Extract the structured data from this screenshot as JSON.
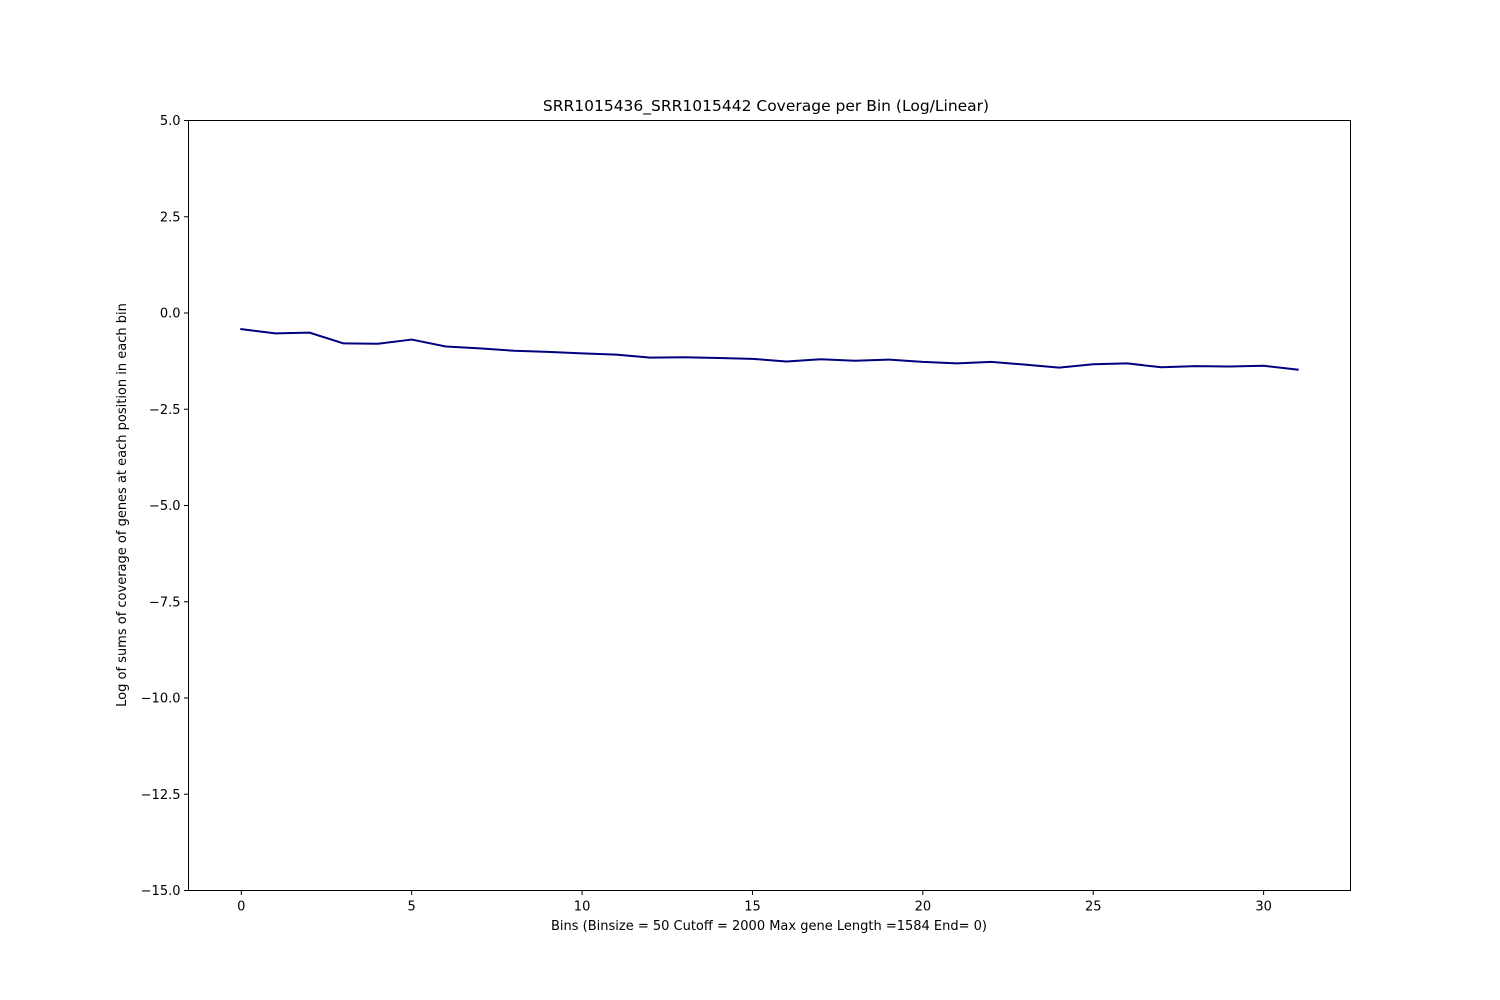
{
  "chart_data": {
    "type": "line",
    "title": "SRR1015436_SRR1015442 Coverage per Bin (Log/Linear)",
    "xlabel": "Bins  (Binsize = 50 Cutoff = 2000 Max gene Length =1584 End= 0)",
    "ylabel": "Log of sums of coverage of genes at each position in each bin",
    "xlim": [
      -1.55,
      32.55
    ],
    "ylim": [
      -15.0,
      5.0
    ],
    "xticks": [
      0,
      5,
      10,
      15,
      20,
      25,
      30
    ],
    "xtick_labels": [
      "0",
      "5",
      "10",
      "15",
      "20",
      "25",
      "30"
    ],
    "yticks": [
      5.0,
      2.5,
      0.0,
      -2.5,
      -5.0,
      -7.5,
      -10.0,
      -12.5,
      -15.0
    ],
    "ytick_labels": [
      "5.0",
      "2.5",
      "0.0",
      "−2.5",
      "−5.0",
      "−7.5",
      "−10.0",
      "−12.5",
      "−15.0"
    ],
    "grid": false,
    "legend": "none",
    "series": [
      {
        "color": "#000080",
        "x": [
          0,
          1,
          2,
          3,
          4,
          5,
          6,
          7,
          8,
          9,
          10,
          11,
          12,
          13,
          14,
          15,
          16,
          17,
          18,
          19,
          20,
          21,
          22,
          23,
          24,
          25,
          26,
          27,
          28,
          29,
          30,
          31
        ],
        "y": [
          -0.42,
          -0.53,
          -0.51,
          -0.79,
          -0.8,
          -0.69,
          -0.87,
          -0.92,
          -0.98,
          -1.01,
          -1.05,
          -1.08,
          -1.16,
          -1.15,
          -1.17,
          -1.19,
          -1.26,
          -1.2,
          -1.24,
          -1.21,
          -1.27,
          -1.31,
          -1.27,
          -1.34,
          -1.42,
          -1.33,
          -1.31,
          -1.41,
          -1.38,
          -1.39,
          -1.37,
          -1.47
        ]
      }
    ]
  }
}
